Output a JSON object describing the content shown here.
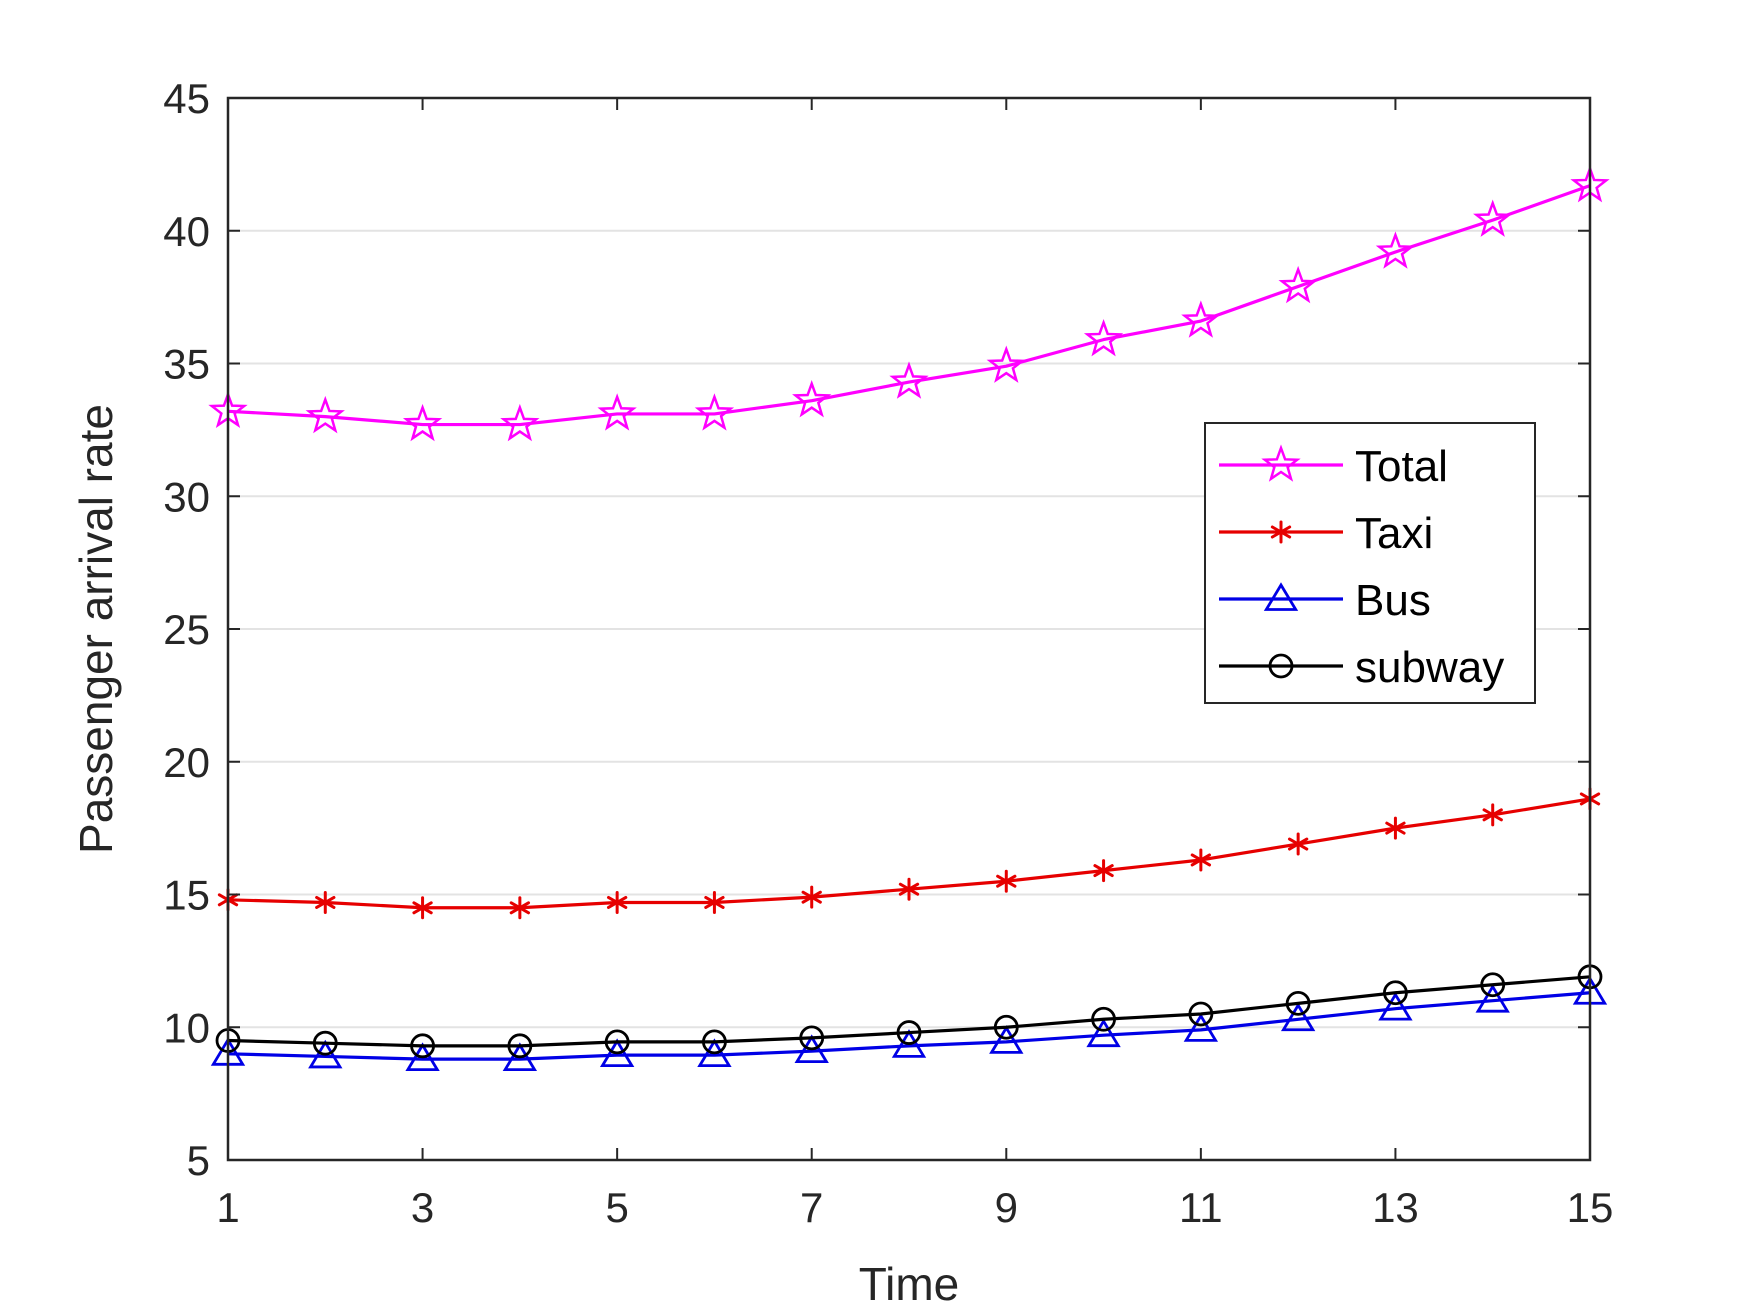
{
  "chart_data": {
    "type": "line",
    "xlabel": "Time",
    "ylabel": "Passenger arrival rate",
    "xlim": [
      1,
      15
    ],
    "ylim": [
      5,
      45
    ],
    "xticks": [
      1,
      3,
      5,
      7,
      9,
      11,
      13,
      15
    ],
    "yticks": [
      5,
      10,
      15,
      20,
      25,
      30,
      35,
      40,
      45
    ],
    "grid": "horizontal",
    "legend_position": "right-middle",
    "x": [
      1,
      2,
      3,
      4,
      5,
      6,
      7,
      8,
      9,
      10,
      11,
      12,
      13,
      14,
      15
    ],
    "series": [
      {
        "name": "Total",
        "color": "#ff00ff",
        "marker": "star",
        "values": [
          33.2,
          33.0,
          32.7,
          32.7,
          33.1,
          33.1,
          33.6,
          34.3,
          34.9,
          35.9,
          36.6,
          37.9,
          39.2,
          40.4,
          41.7
        ]
      },
      {
        "name": "Taxi",
        "color": "#e60000",
        "marker": "asterisk",
        "values": [
          14.8,
          14.7,
          14.5,
          14.5,
          14.7,
          14.7,
          14.9,
          15.2,
          15.5,
          15.9,
          16.3,
          16.9,
          17.5,
          18.0,
          18.6
        ]
      },
      {
        "name": "Bus",
        "color": "#0000e6",
        "marker": "triangle",
        "values": [
          9.0,
          8.9,
          8.8,
          8.8,
          8.95,
          8.95,
          9.1,
          9.3,
          9.45,
          9.7,
          9.9,
          10.3,
          10.7,
          11.0,
          11.3
        ]
      },
      {
        "name": "subway",
        "color": "#000000",
        "marker": "circle",
        "values": [
          9.5,
          9.4,
          9.3,
          9.3,
          9.45,
          9.45,
          9.6,
          9.8,
          10.0,
          10.3,
          10.5,
          10.9,
          11.3,
          11.6,
          11.9
        ]
      }
    ]
  }
}
